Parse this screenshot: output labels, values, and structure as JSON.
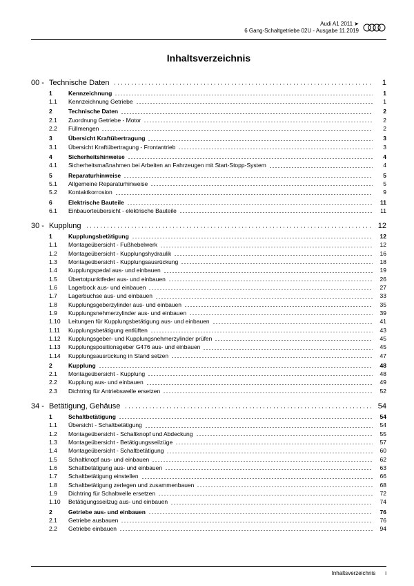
{
  "header": {
    "line1": "Audi A1 2011 ➤",
    "line2": "6 Gang-Schaltgetriebe 02U - Ausgabe 11.2019"
  },
  "title": "Inhaltsverzeichnis",
  "footer": {
    "label": "Inhaltsverzeichnis",
    "page": "i"
  },
  "sections": [
    {
      "num": "00 -",
      "label": "Technische Daten",
      "page": "1",
      "rows": [
        {
          "num": "1",
          "label": "Kennzeichnung",
          "page": "1",
          "bold": true
        },
        {
          "num": "1.1",
          "label": "Kennzeichnung Getriebe",
          "page": "1"
        },
        {
          "num": "2",
          "label": "Technische Daten",
          "page": "2",
          "bold": true
        },
        {
          "num": "2.1",
          "label": "Zuordnung Getriebe - Motor",
          "page": "2"
        },
        {
          "num": "2.2",
          "label": "Füllmengen",
          "page": "2"
        },
        {
          "num": "3",
          "label": "Übersicht Kraftübertragung",
          "page": "3",
          "bold": true
        },
        {
          "num": "3.1",
          "label": "Übersicht Kraftübertragung - Frontantrieb",
          "page": "3"
        },
        {
          "num": "4",
          "label": "Sicherheitshinweise",
          "page": "4",
          "bold": true
        },
        {
          "num": "4.1",
          "label": "Sicherheitsmaßnahmen bei Arbeiten an Fahrzeugen mit Start-Stopp-System",
          "page": "4"
        },
        {
          "num": "5",
          "label": "Reparaturhinweise",
          "page": "5",
          "bold": true
        },
        {
          "num": "5.1",
          "label": "Allgemeine Reparaturhinweise",
          "page": "5"
        },
        {
          "num": "5.2",
          "label": "Kontaktkorrosion",
          "page": "9"
        },
        {
          "num": "6",
          "label": "Elektrische Bauteile",
          "page": "11",
          "bold": true
        },
        {
          "num": "6.1",
          "label": "Einbauorteübersicht - elektrische Bauteile",
          "page": "11"
        }
      ]
    },
    {
      "num": "30 -",
      "label": "Kupplung",
      "page": "12",
      "rows": [
        {
          "num": "1",
          "label": "Kupplungsbetätigung",
          "page": "12",
          "bold": true
        },
        {
          "num": "1.1",
          "label": "Montageübersicht - Fußhebelwerk",
          "page": "12"
        },
        {
          "num": "1.2",
          "label": "Montageübersicht - Kupplungshydraulik",
          "page": "16"
        },
        {
          "num": "1.3",
          "label": "Montageübersicht - Kupplungsausrückung",
          "page": "18"
        },
        {
          "num": "1.4",
          "label": "Kupplungspedal aus- und einbauen",
          "page": "19"
        },
        {
          "num": "1.5",
          "label": "Übertotpunktfeder aus- und einbauen",
          "page": "26"
        },
        {
          "num": "1.6",
          "label": "Lagerbock aus- und einbauen",
          "page": "27"
        },
        {
          "num": "1.7",
          "label": "Lagerbuchse aus- und einbauen",
          "page": "33"
        },
        {
          "num": "1.8",
          "label": "Kupplungsgeberzylinder aus- und einbauen",
          "page": "35"
        },
        {
          "num": "1.9",
          "label": "Kupplungsnehmerzylinder aus- und einbauen",
          "page": "39"
        },
        {
          "num": "1.10",
          "label": "Leitungen für Kupplungsbetätigung aus- und einbauen",
          "page": "41"
        },
        {
          "num": "1.11",
          "label": "Kupplungsbetätigung entlüften",
          "page": "43"
        },
        {
          "num": "1.12",
          "label": "Kupplungsgeber- und Kupplungsnehmerzylinder prüfen",
          "page": "45"
        },
        {
          "num": "1.13",
          "label": "Kupplungspositionsgeber G476 aus- und einbauen",
          "page": "45"
        },
        {
          "num": "1.14",
          "label": "Kupplungsausrückung in Stand setzen",
          "page": "47"
        },
        {
          "num": "2",
          "label": "Kupplung",
          "page": "48",
          "bold": true
        },
        {
          "num": "2.1",
          "label": "Montageübersicht - Kupplung",
          "page": "48"
        },
        {
          "num": "2.2",
          "label": "Kupplung aus- und einbauen",
          "page": "49"
        },
        {
          "num": "2.3",
          "label": "Dichtring für Antriebswelle ersetzen",
          "page": "52"
        }
      ]
    },
    {
      "num": "34 -",
      "label": "Betätigung, Gehäuse",
      "page": "54",
      "rows": [
        {
          "num": "1",
          "label": "Schaltbetätigung",
          "page": "54",
          "bold": true
        },
        {
          "num": "1.1",
          "label": "Übersicht - Schaltbetätigung",
          "page": "54"
        },
        {
          "num": "1.2",
          "label": "Montageübersicht - Schaltknopf und Abdeckung",
          "page": "55"
        },
        {
          "num": "1.3",
          "label": "Montageübersicht - Betätigungsseilzüge",
          "page": "57"
        },
        {
          "num": "1.4",
          "label": "Montageübersicht - Schaltbetätigung",
          "page": "60"
        },
        {
          "num": "1.5",
          "label": "Schaltknopf aus- und einbauen",
          "page": "62"
        },
        {
          "num": "1.6",
          "label": "Schaltbetätigung aus- und einbauen",
          "page": "63"
        },
        {
          "num": "1.7",
          "label": "Schaltbetätigung einstellen",
          "page": "66"
        },
        {
          "num": "1.8",
          "label": "Schaltbetätigung zerlegen und zusammenbauen",
          "page": "68"
        },
        {
          "num": "1.9",
          "label": "Dichtring für Schaltwelle ersetzen",
          "page": "72"
        },
        {
          "num": "1.10",
          "label": "Betätigungsseilzug aus- und einbauen",
          "page": "74"
        },
        {
          "num": "2",
          "label": "Getriebe aus- und einbauen",
          "page": "76",
          "bold": true
        },
        {
          "num": "2.1",
          "label": "Getriebe ausbauen",
          "page": "76"
        },
        {
          "num": "2.2",
          "label": "Getriebe einbauen",
          "page": "94"
        }
      ]
    }
  ]
}
